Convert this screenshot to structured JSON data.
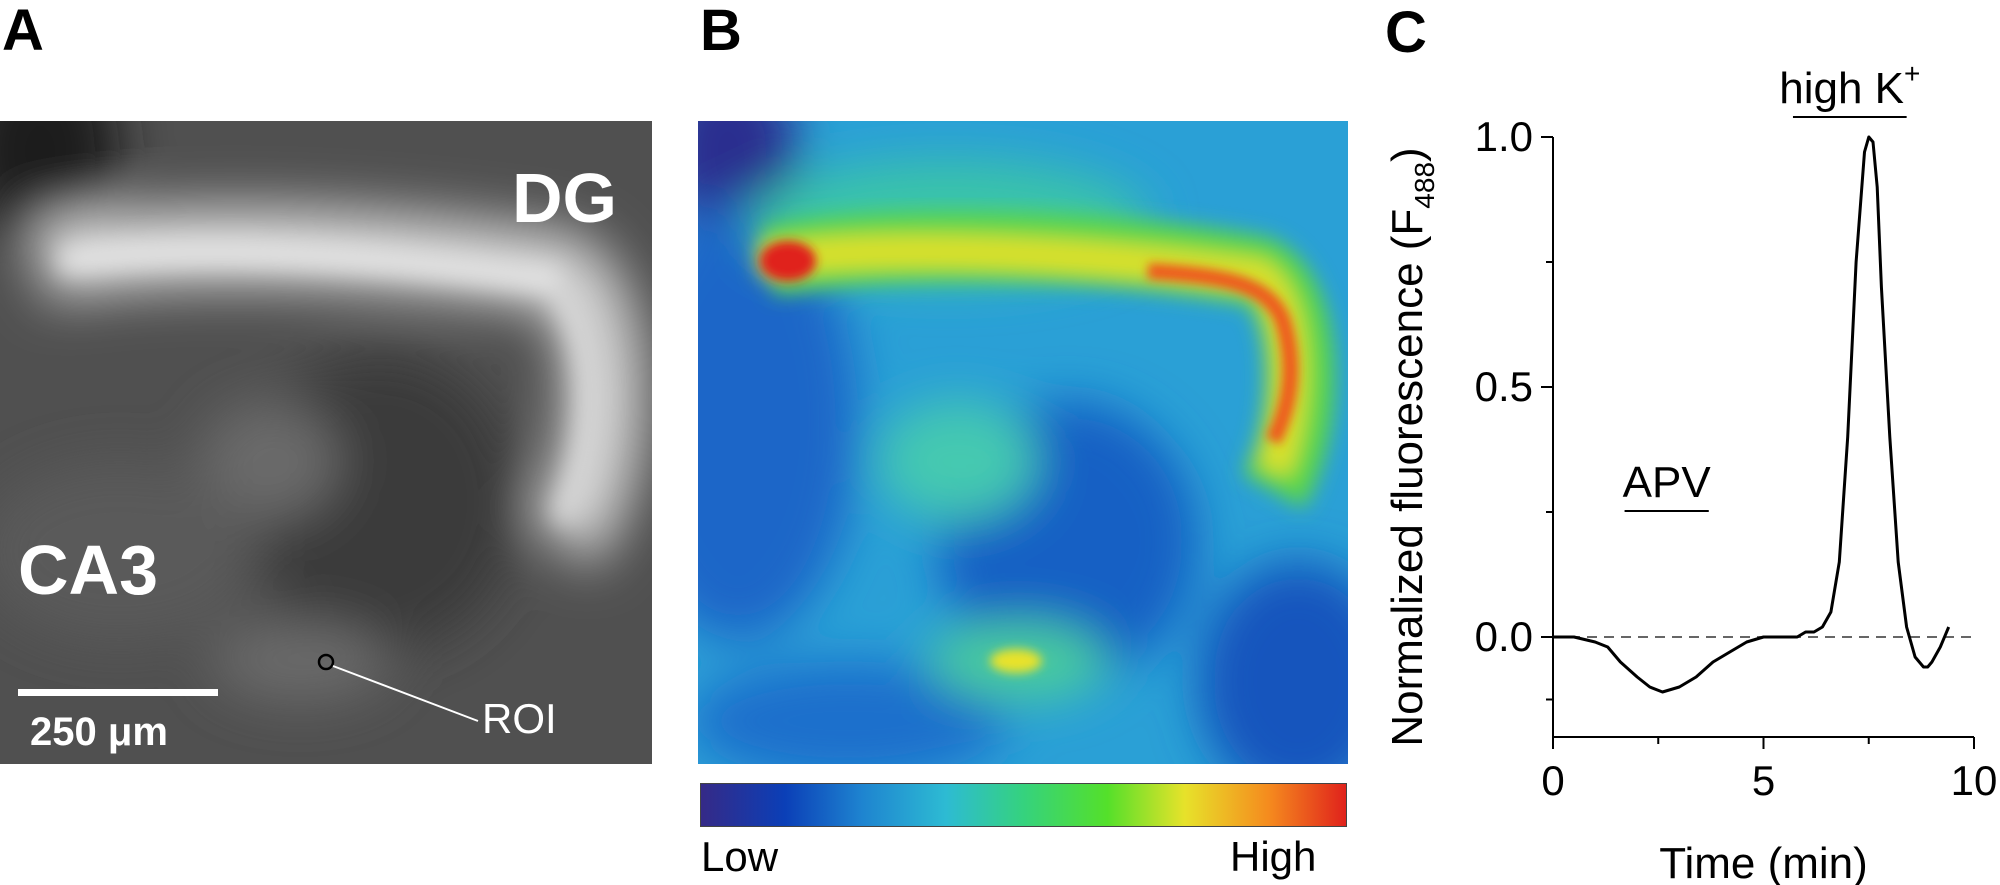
{
  "panels": {
    "a": {
      "letter": "A",
      "region_top_right": "DG",
      "region_left": "CA3",
      "scale_bar_label": "250 μm",
      "roi_label": "ROI"
    },
    "b": {
      "letter": "B",
      "colorbar_low": "Low",
      "colorbar_high": "High",
      "colormap": [
        "#352a87",
        "#0b3fb7",
        "#1e84d0",
        "#2dbbd3",
        "#35d27e",
        "#54e02a",
        "#e7e22a",
        "#f58b1e",
        "#e0221c"
      ]
    },
    "c": {
      "letter": "C",
      "line_color": "#000000"
    }
  },
  "chart_data": {
    "type": "line",
    "title": "",
    "xlabel": "Time (min)",
    "ylabel": "Normalized fluorescence (F488)",
    "ylabel_main": "Normalized fluorescence (F",
    "ylabel_sub": "488",
    "ylabel_close": ")",
    "xlim": [
      0,
      10
    ],
    "ylim": [
      -0.2,
      1.0
    ],
    "x_ticks": [
      0,
      5,
      10
    ],
    "x_tick_labels": [
      "0",
      "5",
      "10"
    ],
    "y_ticks": [
      0.0,
      0.5,
      1.0
    ],
    "y_tick_labels": [
      "0.0",
      "0.5",
      "1.0"
    ],
    "baseline": 0.0,
    "grid": false,
    "annotations": [
      {
        "text": "APV",
        "x_start": 1.7,
        "x_end": 3.7
      },
      {
        "text": "high K",
        "superscript": "+",
        "x_start": 5.7,
        "x_end": 8.4
      }
    ],
    "series": [
      {
        "x": [
          0,
          0.5,
          1.0,
          1.3,
          1.6,
          2.0,
          2.3,
          2.6,
          3.0,
          3.4,
          3.8,
          4.2,
          4.6,
          5.0,
          5.4,
          5.8,
          6.0,
          6.2,
          6.4,
          6.6,
          6.8,
          7.0,
          7.2,
          7.4,
          7.5,
          7.6,
          7.7,
          7.8,
          8.0,
          8.2,
          8.4,
          8.6,
          8.8,
          8.9,
          9.0,
          9.2,
          9.4
        ],
        "y": [
          0.0,
          0.0,
          -0.01,
          -0.02,
          -0.05,
          -0.08,
          -0.1,
          -0.11,
          -0.1,
          -0.08,
          -0.05,
          -0.03,
          -0.01,
          0.0,
          0.0,
          0.0,
          0.01,
          0.01,
          0.02,
          0.05,
          0.15,
          0.4,
          0.75,
          0.97,
          1.0,
          0.99,
          0.9,
          0.7,
          0.4,
          0.15,
          0.02,
          -0.04,
          -0.06,
          -0.06,
          -0.05,
          -0.02,
          0.02
        ]
      }
    ]
  }
}
